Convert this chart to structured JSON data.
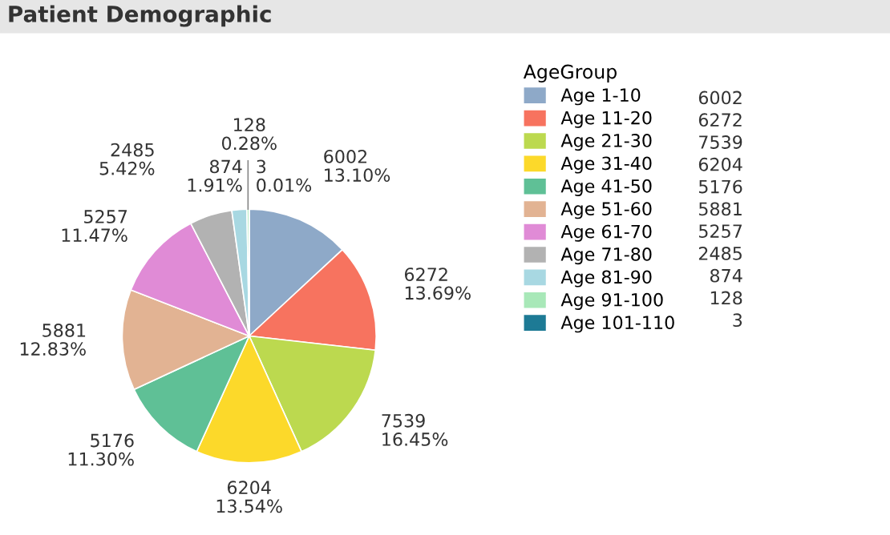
{
  "chart_data": {
    "type": "pie",
    "title": "Patient Demographic",
    "legend_title": "AgeGroup",
    "legend": "right",
    "categories": [
      "Age 1-10",
      "Age 11-20",
      "Age 21-30",
      "Age 31-40",
      "Age 41-50",
      "Age 51-60",
      "Age 61-70",
      "Age 71-80",
      "Age 81-90",
      "Age 91-100",
      "Age 101-110"
    ],
    "values": [
      6002,
      6272,
      7539,
      6204,
      5176,
      5881,
      5257,
      2485,
      874,
      128,
      3
    ],
    "colors": [
      "#8ea9c8",
      "#f7735f",
      "#bcd94f",
      "#fcd92a",
      "#5fc096",
      "#e2b393",
      "#e08bd6",
      "#b2b2b2",
      "#a8d8e2",
      "#a8e8b8",
      "#1d7a95"
    ],
    "annotations": [
      "6002",
      "6272",
      "7539",
      "6204",
      "5176",
      "5881",
      "5257",
      "2485",
      "874",
      "128",
      "3"
    ],
    "value_labels": [
      "6002\n13.10%",
      "6272\n13.69%",
      "7539\n16.45%",
      "6204\n13.54%",
      "5176\n11.30%",
      "5881\n12.83%",
      "5257\n11.47%",
      "2485\n5.42%",
      "874\n1.91%",
      "128\n0.28%",
      "3\n0.01%"
    ]
  }
}
